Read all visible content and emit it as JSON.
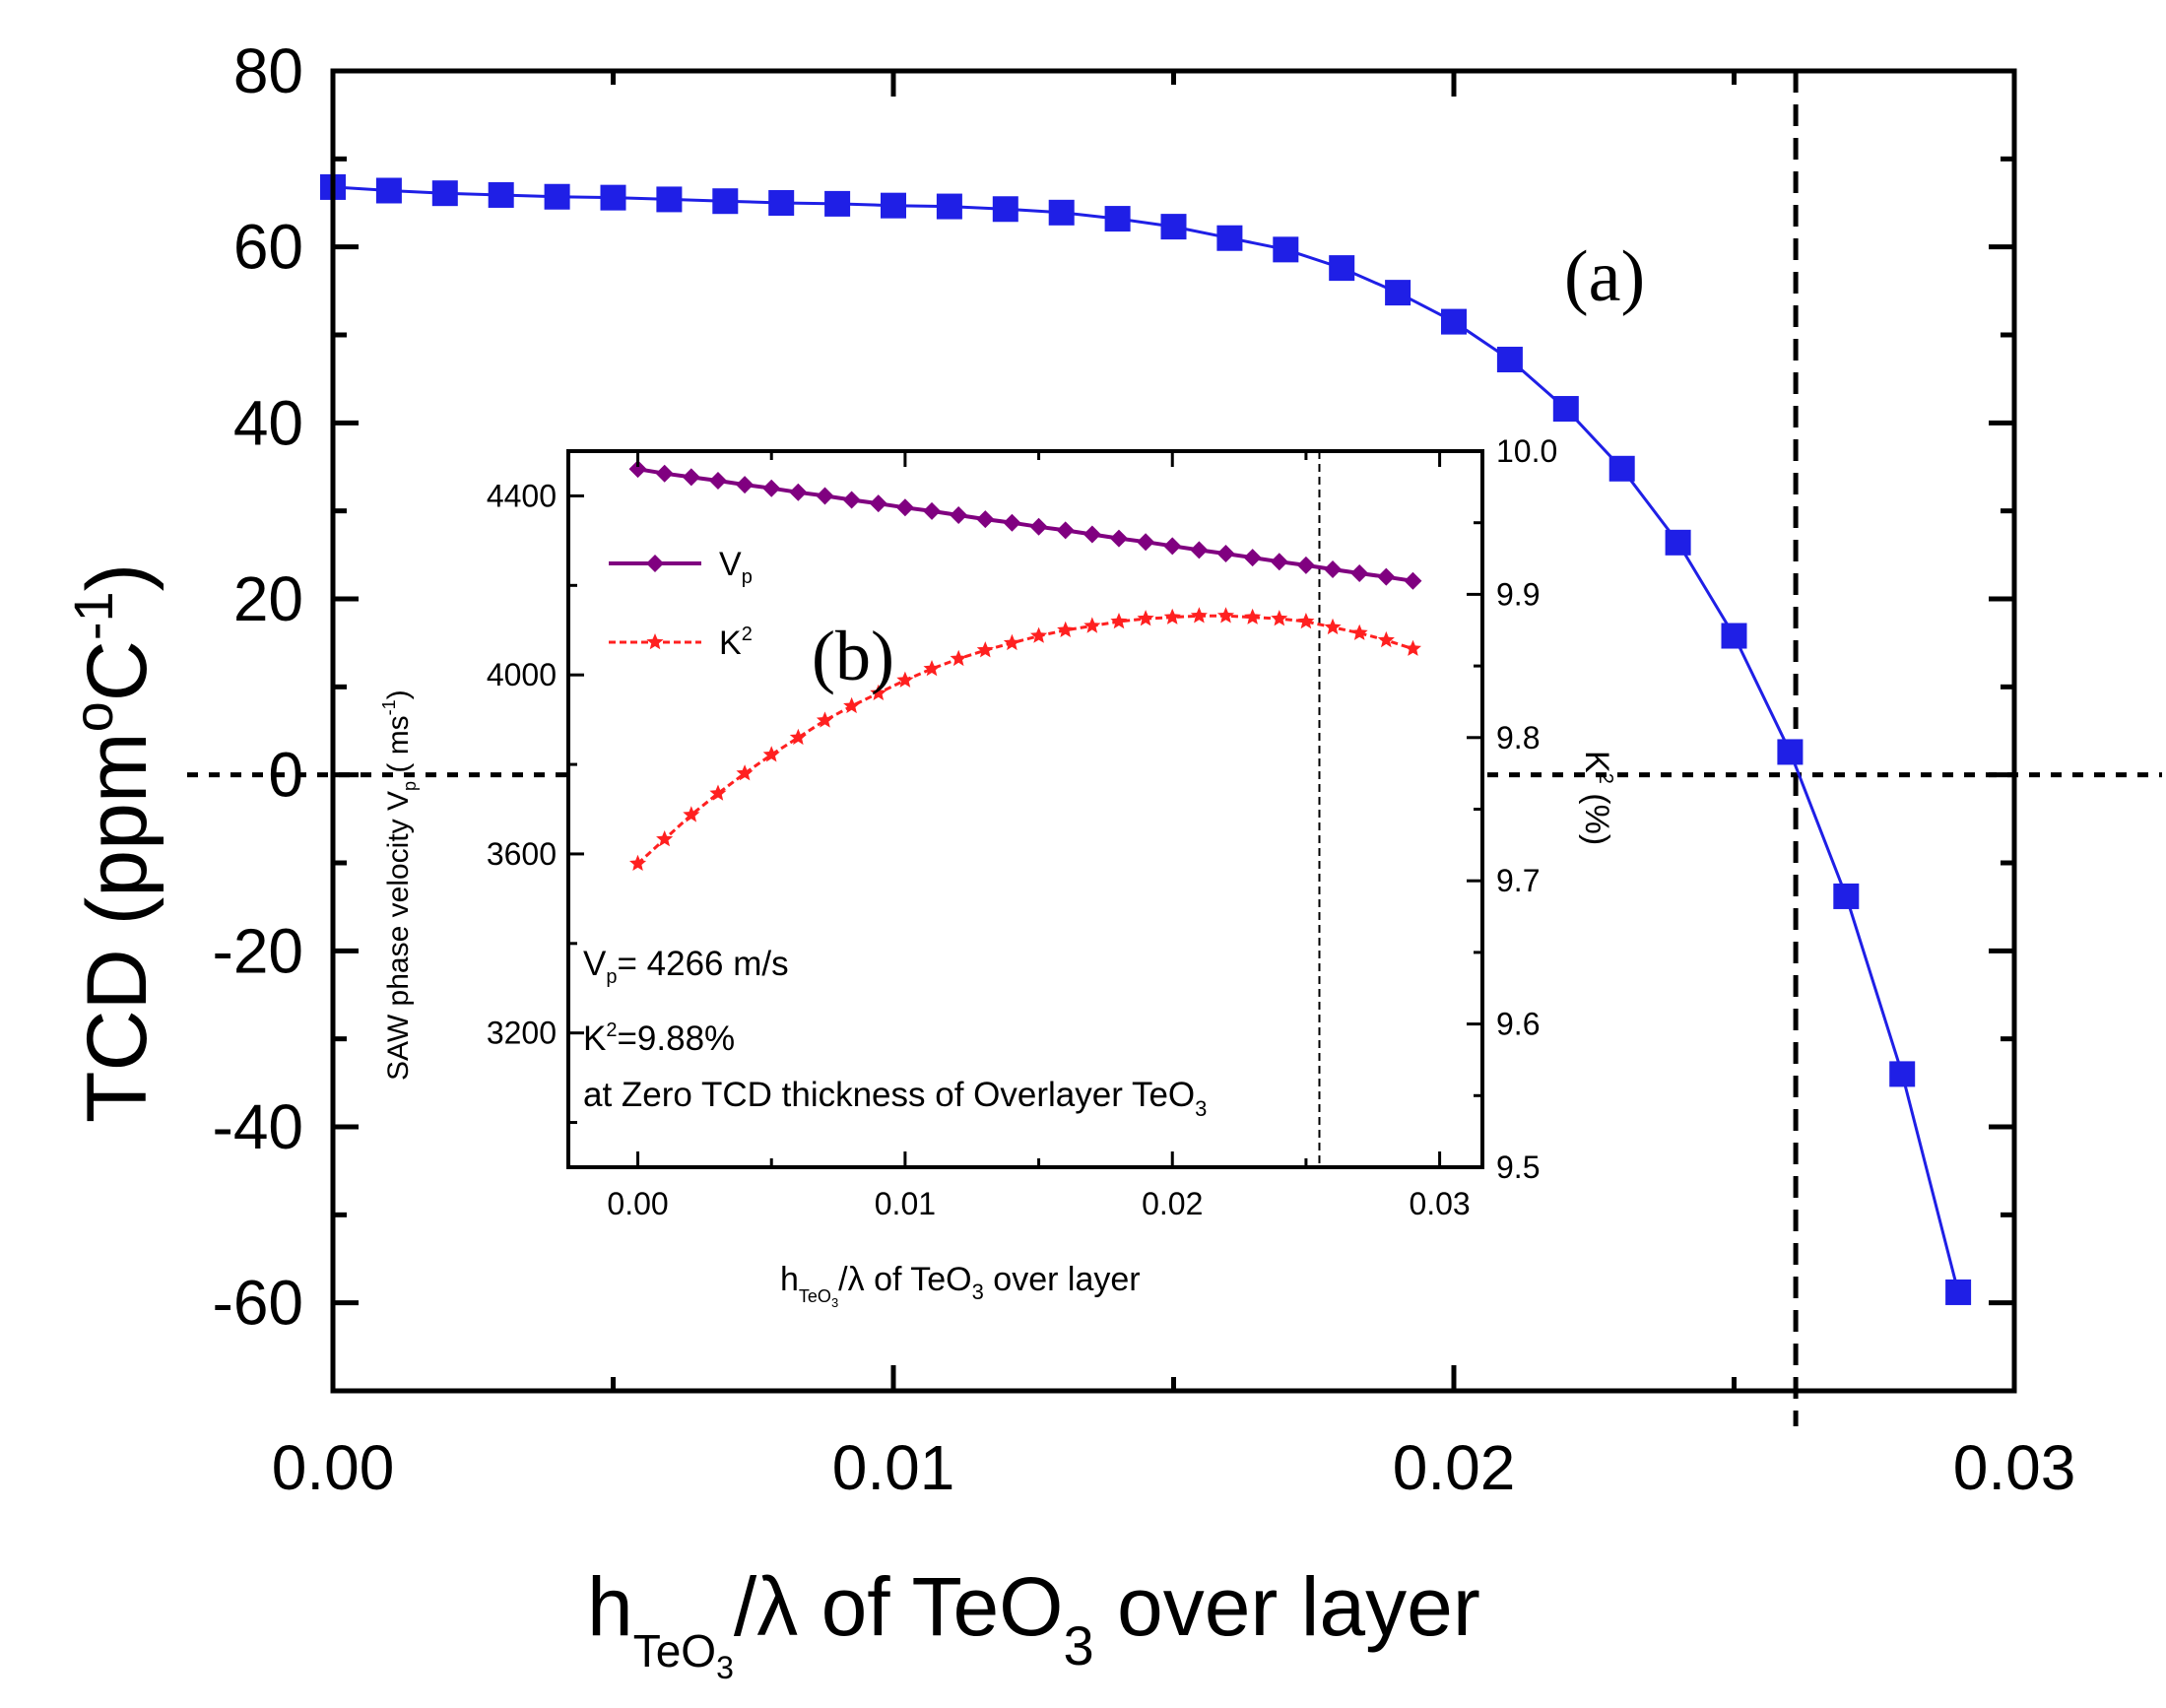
{
  "chart_data": [
    {
      "id": "main",
      "type": "line",
      "panel_label": "(a)",
      "xlabel": {
        "base": "h",
        "sub": "TeO",
        "subsub": "3",
        "rest": "/λ of TeO",
        "sub2": "3",
        "tail": " over layer"
      },
      "ylabel": {
        "base": "TCD (ppm",
        "sup1": "o",
        "mid": "C",
        "sup2": "-1",
        "tail": ")"
      },
      "xlim": [
        0,
        0.03
      ],
      "ylim": [
        -70,
        80
      ],
      "xticks": [
        {
          "v": 0,
          "label": "0.00"
        },
        {
          "v": 0.01,
          "label": "0.01"
        },
        {
          "v": 0.02,
          "label": "0.02"
        },
        {
          "v": 0.03,
          "label": "0.03"
        }
      ],
      "yticks": [
        {
          "v": 80,
          "label": "80"
        },
        {
          "v": 60,
          "label": "60"
        },
        {
          "v": 40,
          "label": "40"
        },
        {
          "v": 20,
          "label": "20"
        },
        {
          "v": 0,
          "label": "0"
        },
        {
          "v": -20,
          "label": "-20"
        },
        {
          "v": -40,
          "label": "-40"
        },
        {
          "v": -60,
          "label": "-60"
        }
      ],
      "zero_tcd_x": 0.0261,
      "series": [
        {
          "name": "TCD",
          "color": "#1f1fe6",
          "marker": "square",
          "x": [
            0.0,
            0.001,
            0.002,
            0.003,
            0.004,
            0.005,
            0.006,
            0.007,
            0.008,
            0.009,
            0.01,
            0.011,
            0.012,
            0.013,
            0.014,
            0.015,
            0.016,
            0.017,
            0.018,
            0.019,
            0.02,
            0.021,
            0.022,
            0.023,
            0.024,
            0.025,
            0.026,
            0.027,
            0.028,
            0.029
          ],
          "y": [
            66.8,
            66.4,
            66.1,
            65.9,
            65.7,
            65.6,
            65.4,
            65.2,
            65.0,
            64.9,
            64.7,
            64.6,
            64.3,
            63.9,
            63.2,
            62.3,
            61.0,
            59.7,
            57.6,
            54.8,
            51.5,
            47.2,
            41.6,
            34.8,
            26.4,
            15.8,
            2.6,
            -13.8,
            -34.0,
            -58.8
          ]
        }
      ]
    },
    {
      "id": "inset",
      "type": "line",
      "panel_label": "(b)",
      "xlabel": {
        "base": "h",
        "sub": "TeO",
        "subsub": "3",
        "rest": "/λ of TeO",
        "sub2": "3",
        "tail": " over layer"
      },
      "ylabel": {
        "base": "SAW phase velocity V",
        "sub": "p",
        "mid": " ( ms",
        "sup": "-1",
        "tail": ")"
      },
      "y2label": {
        "base": "K",
        "sup": "2",
        "tail": " (%)"
      },
      "xlim": [
        -0.0026,
        0.0316
      ],
      "ylim": [
        2900,
        4500
      ],
      "y2lim": [
        9.5,
        10.0
      ],
      "xticks": [
        {
          "v": 0,
          "label": "0.00"
        },
        {
          "v": 0.01,
          "label": "0.01"
        },
        {
          "v": 0.02,
          "label": "0.02"
        },
        {
          "v": 0.03,
          "label": "0.03"
        }
      ],
      "yticks": [
        {
          "v": 4400,
          "label": "4400"
        },
        {
          "v": 4000,
          "label": "4000"
        },
        {
          "v": 3600,
          "label": "3600"
        },
        {
          "v": 3200,
          "label": "3200"
        }
      ],
      "y2ticks": [
        {
          "v": 10.0,
          "label": "10.0"
        },
        {
          "v": 9.9,
          "label": "9.9"
        },
        {
          "v": 9.8,
          "label": "9.8"
        },
        {
          "v": 9.7,
          "label": "9.7"
        },
        {
          "v": 9.6,
          "label": "9.6"
        },
        {
          "v": 9.5,
          "label": "9.5"
        }
      ],
      "zero_tcd_x": 0.0255,
      "annotations": {
        "line1": {
          "base": "V",
          "sub": "p",
          "tail": "= 4266 m/s"
        },
        "line2": {
          "base": "K",
          "sup": "2",
          "tail": "=9.88%"
        },
        "line3": {
          "base": "at Zero TCD thickness of Overlayer TeO",
          "sub": "3"
        }
      },
      "series": [
        {
          "name": "Vp",
          "legend": {
            "base": "V",
            "sub": "p"
          },
          "color": "#800080",
          "marker": "diamond",
          "axis": "left",
          "x": [
            0.0,
            0.001,
            0.002,
            0.003,
            0.004,
            0.005,
            0.006,
            0.007,
            0.008,
            0.009,
            0.01,
            0.011,
            0.012,
            0.013,
            0.014,
            0.015,
            0.016,
            0.017,
            0.018,
            0.019,
            0.02,
            0.021,
            0.022,
            0.023,
            0.024,
            0.025,
            0.026,
            0.027,
            0.028,
            0.029
          ],
          "y": [
            4460,
            4450,
            4442,
            4434,
            4425,
            4417,
            4408,
            4400,
            4391,
            4383,
            4374,
            4366,
            4357,
            4348,
            4340,
            4331,
            4323,
            4314,
            4305,
            4297,
            4288,
            4279,
            4271,
            4262,
            4253,
            4245,
            4236,
            4227,
            4219,
            4210
          ]
        },
        {
          "name": "K2",
          "legend": {
            "base": "K",
            "sup": "2"
          },
          "color": "#ff2020",
          "marker": "star",
          "axis": "right",
          "x": [
            0.0,
            0.001,
            0.002,
            0.003,
            0.004,
            0.005,
            0.006,
            0.007,
            0.008,
            0.009,
            0.01,
            0.011,
            0.012,
            0.013,
            0.014,
            0.015,
            0.016,
            0.017,
            0.018,
            0.019,
            0.02,
            0.021,
            0.022,
            0.023,
            0.024,
            0.025,
            0.026,
            0.027,
            0.028,
            0.029
          ],
          "y": [
            9.712,
            9.729,
            9.746,
            9.761,
            9.775,
            9.788,
            9.8,
            9.812,
            9.822,
            9.831,
            9.84,
            9.848,
            9.855,
            9.861,
            9.866,
            9.871,
            9.875,
            9.878,
            9.881,
            9.883,
            9.884,
            9.885,
            9.885,
            9.884,
            9.883,
            9.881,
            9.877,
            9.873,
            9.868,
            9.862
          ]
        }
      ]
    }
  ]
}
